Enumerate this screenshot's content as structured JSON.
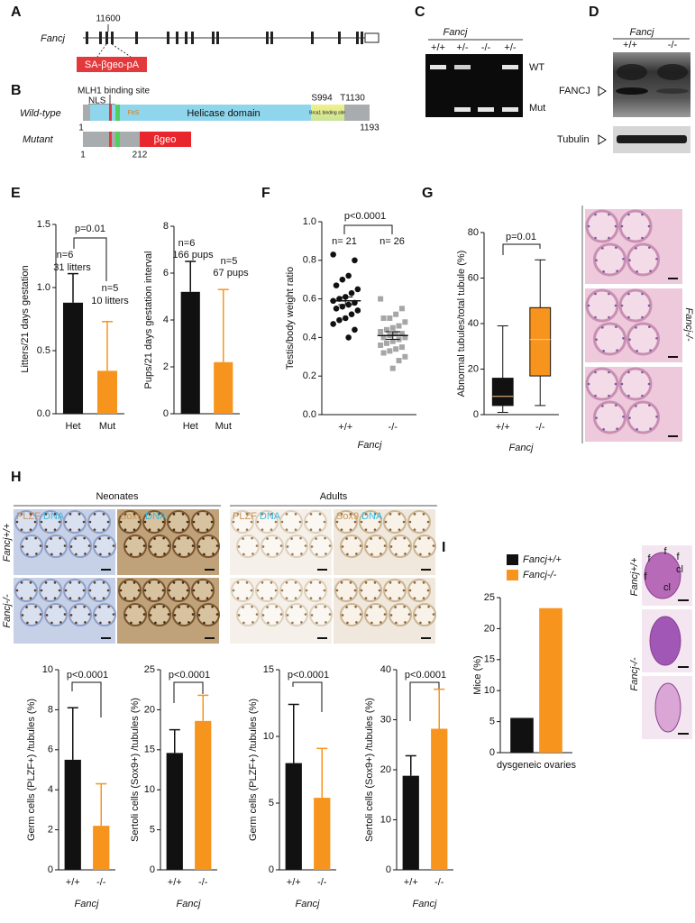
{
  "panel_labels": [
    "A",
    "B",
    "C",
    "D",
    "E",
    "F",
    "G",
    "H",
    "I"
  ],
  "gene_map": {
    "name": "Fancj",
    "position": "11600",
    "cassette": "SA-βgeo-pA"
  },
  "protein": {
    "site_label": "MLH1 binding site",
    "nls": "NLS",
    "wt_label": "Wild-type",
    "fes": "FeS",
    "helicase": "Helicase domain",
    "brca1": "Brca1 binding site",
    "s994": "S994",
    "t1130": "T1130",
    "wt_start": "1",
    "wt_end": "1193",
    "mut_label": "Mutant",
    "mut_domain": "βgeo",
    "mut_start": "1",
    "mut_end": "212"
  },
  "genotyping": {
    "gene": "Fancj",
    "lanes": [
      "+/+",
      "+/-",
      "-/-",
      "+/-"
    ],
    "bands": [
      "WT",
      "Mut"
    ]
  },
  "western": {
    "gene": "Fancj",
    "lanes": [
      "+/+",
      "-/-"
    ],
    "targets": [
      "FANCJ",
      "Tubulin"
    ]
  },
  "histology": {
    "g_label": "Fancj-/-",
    "h_groups": [
      "Neonates",
      "Adults"
    ],
    "h_stains": [
      {
        "marker": "PLZF",
        "counter": "DNA"
      },
      {
        "marker": "Sox9",
        "counter": "DNA"
      },
      {
        "marker": "PLZF",
        "counter": "DNA"
      },
      {
        "marker": "Sox9",
        "counter": "DNA"
      }
    ],
    "h_rows": [
      "Fancj+/+",
      "Fancj-/-"
    ],
    "i_rows": [
      "Fancj+/+",
      "Fancj-/-"
    ],
    "i_annotations": [
      "f",
      "f",
      "f",
      "f",
      "cl",
      "cl"
    ]
  },
  "chart_data": [
    {
      "type": "bar",
      "categories": [
        "Het",
        "Mut"
      ],
      "values": [
        0.88,
        0.34
      ],
      "errors": [
        0.23,
        0.39
      ],
      "colors": [
        "#111111",
        "#f7941d"
      ],
      "ylim": [
        0,
        1.5
      ],
      "yticks": [
        {
          "value": 0,
          "label": "0.0"
        },
        0.5,
        {
          "value": 1,
          "label": "1.0"
        },
        1.5
      ],
      "ylabel": "Litters/21 days gestation",
      "annotations": [
        "p=0.01",
        "n=6",
        "31 litters",
        "n=5",
        "10 litters"
      ]
    },
    {
      "type": "bar",
      "categories": [
        "Het",
        "Mut"
      ],
      "values": [
        5.2,
        2.2
      ],
      "errors": [
        1.3,
        3.1
      ],
      "colors": [
        "#111111",
        "#f7941d"
      ],
      "ylim": [
        0,
        8
      ],
      "yticks": [
        0,
        2,
        4,
        6,
        8
      ],
      "ylabel": "Pups/21 days gestation interval",
      "annotations": [
        "n=6",
        "166 pups",
        "n=5",
        "67 pups"
      ]
    },
    {
      "type": "dot",
      "categories": [
        "+/+",
        "-/-"
      ],
      "values": [
        [
          0.83,
          0.8,
          0.72,
          0.7,
          0.67,
          0.65,
          0.63,
          0.61,
          0.6,
          0.59,
          0.58,
          0.57,
          0.56,
          0.55,
          0.54,
          0.52,
          0.5,
          0.49,
          0.47,
          0.44,
          0.4
        ],
        [
          0.6,
          0.55,
          0.52,
          0.5,
          0.5,
          0.48,
          0.46,
          0.45,
          0.44,
          0.43,
          0.42,
          0.42,
          0.41,
          0.4,
          0.4,
          0.39,
          0.38,
          0.37,
          0.36,
          0.35,
          0.34,
          0.33,
          0.32,
          0.3,
          0.28,
          0.24
        ]
      ],
      "means": [
        0.59,
        0.41
      ],
      "sems": [
        0.02,
        0.02
      ],
      "colors": [
        "#111111",
        "#a6a6a6"
      ],
      "ylim": [
        0,
        1
      ],
      "yticks": [
        {
          "value": 0,
          "label": "0.0"
        },
        0.2,
        0.4,
        0.6,
        0.8,
        {
          "value": 1,
          "label": "1.0"
        }
      ],
      "ylabel": "Testis/body weight ratio",
      "xlabel": "Fancj",
      "annotations": [
        "p<0.0001",
        "n= 21",
        "n= 26"
      ]
    },
    {
      "type": "box",
      "categories": [
        "+/+",
        "-/-"
      ],
      "boxes": [
        {
          "min": 1,
          "q1": 4,
          "median": 8,
          "q3": 16,
          "max": 39
        },
        {
          "min": 4,
          "q1": 17,
          "median": 33,
          "q3": 47,
          "max": 68
        }
      ],
      "colors": [
        "#111111",
        "#f7941d"
      ],
      "ylim": [
        0,
        80
      ],
      "yticks": [
        0,
        20,
        40,
        60,
        80
      ],
      "ylabel": "Abnormal tubules/total tubule (%)",
      "xlabel": "Fancj",
      "annotations": [
        "p=0.01"
      ]
    },
    {
      "type": "bar",
      "categories": [
        "+/+",
        "-/-"
      ],
      "values": [
        5.5,
        2.2
      ],
      "errors": [
        2.6,
        2.1
      ],
      "colors": [
        "#111111",
        "#f7941d"
      ],
      "ylim": [
        0,
        10
      ],
      "yticks": [
        0,
        2,
        4,
        6,
        8,
        10
      ],
      "ylabel": "Germ cells (PLZF+) /tubules (%)",
      "xlabel": "Fancj",
      "annotations": [
        "p<0.0001"
      ]
    },
    {
      "type": "bar",
      "categories": [
        "+/+",
        "-/-"
      ],
      "values": [
        14.6,
        18.6
      ],
      "errors": [
        2.9,
        3.2
      ],
      "colors": [
        "#111111",
        "#f7941d"
      ],
      "ylim": [
        0,
        25
      ],
      "yticks": [
        0,
        5,
        10,
        15,
        20,
        25
      ],
      "ylabel": "Sertoli cells (Sox9+) /tubules (%)",
      "xlabel": "Fancj",
      "annotations": [
        "p<0.0001"
      ]
    },
    {
      "type": "bar",
      "categories": [
        "+/+",
        "-/-"
      ],
      "values": [
        8.0,
        5.4
      ],
      "errors": [
        4.4,
        3.7
      ],
      "colors": [
        "#111111",
        "#f7941d"
      ],
      "ylim": [
        0,
        15
      ],
      "yticks": [
        0,
        5,
        10,
        15
      ],
      "ylabel": "Germ cells (PLZF+) /tubules (%)",
      "xlabel": "Fancj",
      "annotations": [
        "p<0.0001"
      ]
    },
    {
      "type": "bar",
      "categories": [
        "+/+",
        "-/-"
      ],
      "values": [
        18.8,
        28.2
      ],
      "errors": [
        4.0,
        7.9
      ],
      "colors": [
        "#111111",
        "#f7941d"
      ],
      "ylim": [
        0,
        40
      ],
      "yticks": [
        0,
        10,
        20,
        30,
        40
      ],
      "ylabel": "Sertoli cells (Sox9+) /tubules (%)",
      "xlabel": "Fancj",
      "annotations": [
        "p<0.0001"
      ]
    },
    {
      "type": "bar",
      "categories": [
        "dysgeneic ovaries"
      ],
      "series": [
        {
          "name": "Fancj+/+",
          "color": "#111111",
          "values": [
            5.6
          ]
        },
        {
          "name": "Fancj-/-",
          "color": "#f7941d",
          "values": [
            23.3
          ]
        }
      ],
      "ylim": [
        0,
        25
      ],
      "yticks": [
        0,
        5,
        10,
        15,
        20,
        25
      ],
      "ylabel": "Mice (%)"
    }
  ]
}
